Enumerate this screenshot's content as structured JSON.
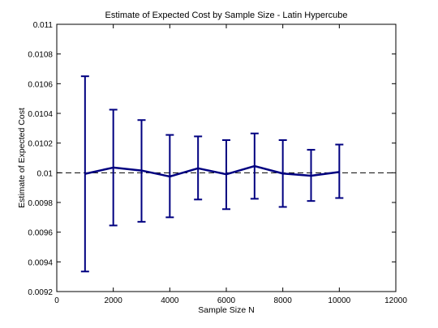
{
  "chart_data": {
    "type": "line",
    "title": "Estimate of Expected Cost by Sample Size - Latin Hypercube",
    "xlabel": "Sample Size N",
    "ylabel": "Estimate of Expected Cost",
    "xlim": [
      0,
      12000
    ],
    "ylim": [
      0.0092,
      0.011
    ],
    "xticks": [
      0,
      2000,
      4000,
      6000,
      8000,
      10000,
      12000
    ],
    "xtick_labels": [
      "0",
      "2000",
      "4000",
      "6000",
      "8000",
      "10000",
      "12000"
    ],
    "yticks": [
      0.0092,
      0.0094,
      0.0096,
      0.0098,
      0.01,
      0.0102,
      0.0104,
      0.0106,
      0.0108,
      0.011
    ],
    "ytick_labels": [
      "0.0092",
      "0.0094",
      "0.0096",
      "0.0098",
      "0.01",
      "0.0102",
      "0.0104",
      "0.0106",
      "0.0108",
      "0.011"
    ],
    "grid": false,
    "series": [
      {
        "color": "#000080",
        "x": [
          1000,
          2000,
          3000,
          4000,
          5000,
          6000,
          7000,
          8000,
          9000,
          10000
        ],
        "y": [
          0.009993,
          0.010035,
          0.010015,
          0.009975,
          0.01003,
          0.00999,
          0.010045,
          0.009995,
          0.00998,
          0.010005
        ],
        "err_lower": [
          0.009335,
          0.009645,
          0.00967,
          0.0097,
          0.00982,
          0.009755,
          0.009825,
          0.00977,
          0.00981,
          0.00983
        ],
        "err_upper": [
          0.01065,
          0.010425,
          0.010355,
          0.010255,
          0.010245,
          0.01022,
          0.010265,
          0.01022,
          0.010155,
          0.01019
        ]
      }
    ],
    "reference_line": {
      "y": 0.01,
      "style": "dashed",
      "color": "#000000"
    }
  }
}
